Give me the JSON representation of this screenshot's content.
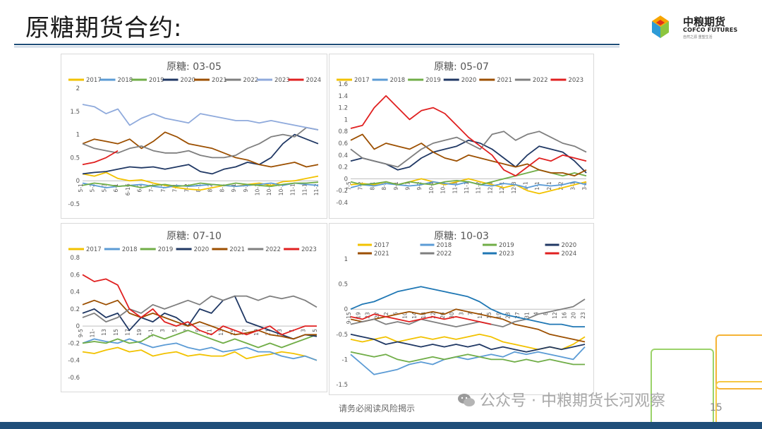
{
  "page": {
    "title": "原糖期货合约:",
    "disclaimer": "请务必阅读风险揭示",
    "page_number": "15",
    "watermark": "公众号 · 中粮期货长河观察"
  },
  "logo": {
    "cn": "中粮期货",
    "en": "COFCO FUTURES",
    "sub": "自然之源  重塑生活"
  },
  "colors": {
    "title_line": "#1f4e79",
    "bottom_bar": "#1f4e79"
  },
  "chart_data": [
    {
      "type": "line",
      "title": "原糖:  03-05",
      "ylim": [
        -0.5,
        2
      ],
      "yticks": [
        "2",
        "1.5",
        "1",
        "0.5",
        "0",
        "-0.5"
      ],
      "xticks": [
        "5-1",
        "5-2",
        "5-3",
        "6-1",
        "6-16",
        "6-2",
        "7-1",
        "7-1",
        "7-1",
        "7-2",
        "8-1",
        "8-2",
        "8-1",
        "9-1",
        "9-2",
        "10-1",
        "10-1",
        "10-3",
        "11-1",
        "11-1",
        "11-2"
      ],
      "legend": [
        {
          "name": "2017",
          "color": "#f2c200"
        },
        {
          "name": "2018",
          "color": "#5b9bd5"
        },
        {
          "name": "2019",
          "color": "#70ad47"
        },
        {
          "name": "2020",
          "color": "#203864"
        },
        {
          "name": "2021",
          "color": "#9c4f00"
        },
        {
          "name": "2022",
          "color": "#7f7f7f"
        },
        {
          "name": "2023",
          "color": "#8faadc"
        },
        {
          "name": "2024",
          "color": "#e02020"
        }
      ],
      "series": [
        {
          "name": "2017",
          "values": [
            0.15,
            0.1,
            0.18,
            0.05,
            0.0,
            0.02,
            -0.05,
            -0.1,
            -0.15,
            -0.18,
            -0.2,
            -0.15,
            -0.1,
            -0.12,
            -0.08,
            -0.05,
            -0.1,
            -0.02,
            0.0,
            0.05,
            0.1
          ]
        },
        {
          "name": "2018",
          "values": [
            -0.05,
            -0.1,
            -0.15,
            -0.12,
            -0.1,
            -0.08,
            -0.12,
            -0.15,
            -0.1,
            -0.12,
            -0.1,
            -0.08,
            -0.1,
            -0.12,
            -0.1,
            -0.08,
            -0.05,
            -0.1,
            -0.05,
            -0.08,
            -0.1
          ]
        },
        {
          "name": "2019",
          "values": [
            -0.1,
            -0.05,
            -0.08,
            -0.12,
            -0.1,
            -0.15,
            -0.1,
            -0.08,
            -0.12,
            -0.1,
            -0.05,
            -0.08,
            -0.1,
            -0.05,
            -0.08,
            -0.1,
            -0.12,
            -0.08,
            -0.05,
            -0.05,
            -0.03
          ]
        },
        {
          "name": "2020",
          "values": [
            0.15,
            0.18,
            0.2,
            0.25,
            0.3,
            0.28,
            0.3,
            0.25,
            0.3,
            0.35,
            0.2,
            0.15,
            0.25,
            0.3,
            0.4,
            0.35,
            0.5,
            0.8,
            1.0,
            0.9,
            0.8
          ]
        },
        {
          "name": "2021",
          "values": [
            0.8,
            0.9,
            0.85,
            0.8,
            0.9,
            0.7,
            0.85,
            1.05,
            0.95,
            0.8,
            0.75,
            0.7,
            0.6,
            0.5,
            0.45,
            0.35,
            0.3,
            0.35,
            0.4,
            0.3,
            0.35
          ]
        },
        {
          "name": "2022",
          "values": [
            0.8,
            0.7,
            0.65,
            0.6,
            0.7,
            0.75,
            0.65,
            0.6,
            0.6,
            0.65,
            0.55,
            0.5,
            0.5,
            0.55,
            0.7,
            0.8,
            0.95,
            1.0,
            0.95,
            1.15,
            1.1
          ]
        },
        {
          "name": "2023",
          "values": [
            1.65,
            1.6,
            1.45,
            1.55,
            1.2,
            1.35,
            1.45,
            1.35,
            1.3,
            1.25,
            1.45,
            1.4,
            1.35,
            1.3,
            1.3,
            1.25,
            1.3,
            1.25,
            1.2,
            1.15,
            1.1
          ]
        },
        {
          "name": "2024",
          "values": [
            0.35,
            0.4,
            0.5,
            0.65,
            null,
            null,
            null,
            null,
            null,
            null,
            null,
            null,
            null,
            null,
            null,
            null,
            null,
            null,
            null,
            null,
            null
          ]
        }
      ]
    },
    {
      "type": "line",
      "title": "原糖:  05-07",
      "ylim": [
        -0.4,
        1.6
      ],
      "yticks": [
        "1.6",
        "1.4",
        "1.2",
        "1",
        "0.8",
        "0.6",
        "0.4",
        "0.2",
        "0",
        "-0.2",
        "-0.4"
      ],
      "xticks": [
        "7-5",
        "7-2",
        "8-1",
        "8-2",
        "9-1",
        "9-1",
        "9-2",
        "10-1",
        "10-1",
        "11-1",
        "11-1",
        "11-2",
        "12-1",
        "12-1",
        "12-3",
        "1-1",
        "1-1",
        "2-1",
        "2-2",
        "3-1",
        "3-2"
      ],
      "legend": [
        {
          "name": "2017",
          "color": "#f2c200"
        },
        {
          "name": "2018",
          "color": "#5b9bd5"
        },
        {
          "name": "2019",
          "color": "#70ad47"
        },
        {
          "name": "2020",
          "color": "#203864"
        },
        {
          "name": "2021",
          "color": "#9c4f00"
        },
        {
          "name": "2022",
          "color": "#7f7f7f"
        },
        {
          "name": "2023",
          "color": "#e02020"
        }
      ],
      "series": [
        {
          "name": "2017",
          "values": [
            -0.1,
            -0.08,
            -0.1,
            -0.05,
            -0.1,
            -0.05,
            0.0,
            -0.05,
            -0.1,
            -0.05,
            0.0,
            -0.05,
            -0.1,
            -0.15,
            -0.1,
            -0.2,
            -0.25,
            -0.2,
            -0.15,
            -0.1,
            -0.05
          ]
        },
        {
          "name": "2018",
          "values": [
            -0.15,
            -0.1,
            -0.12,
            -0.08,
            -0.1,
            -0.12,
            -0.1,
            -0.05,
            -0.08,
            -0.1,
            -0.05,
            -0.1,
            -0.12,
            -0.08,
            -0.1,
            -0.15,
            -0.1,
            -0.12,
            -0.1,
            -0.05,
            -0.1
          ]
        },
        {
          "name": "2019",
          "values": [
            -0.05,
            -0.1,
            -0.08,
            -0.05,
            -0.1,
            -0.05,
            -0.08,
            -0.1,
            -0.05,
            -0.03,
            -0.05,
            -0.1,
            -0.05,
            0.0,
            0.05,
            0.1,
            0.15,
            0.1,
            0.05,
            0.1,
            0.05
          ]
        },
        {
          "name": "2020",
          "values": [
            0.3,
            0.35,
            0.3,
            0.25,
            0.15,
            0.2,
            0.35,
            0.45,
            0.5,
            0.55,
            0.65,
            0.6,
            0.5,
            0.35,
            0.2,
            0.4,
            0.55,
            0.5,
            0.45,
            0.3,
            0.1
          ]
        },
        {
          "name": "2021",
          "values": [
            0.65,
            0.75,
            0.5,
            0.6,
            0.55,
            0.5,
            0.6,
            0.45,
            0.35,
            0.3,
            0.4,
            0.35,
            0.3,
            0.25,
            0.2,
            0.25,
            0.15,
            0.1,
            0.1,
            0.05,
            0.15
          ]
        },
        {
          "name": "2022",
          "values": [
            0.5,
            0.35,
            0.3,
            0.25,
            0.2,
            0.35,
            0.5,
            0.6,
            0.65,
            0.7,
            0.6,
            0.5,
            0.75,
            0.8,
            0.65,
            0.75,
            0.8,
            0.7,
            0.6,
            0.55,
            0.45
          ]
        },
        {
          "name": "2023",
          "values": [
            0.85,
            0.9,
            1.2,
            1.4,
            1.2,
            1.0,
            1.15,
            1.2,
            1.1,
            0.9,
            0.7,
            0.55,
            0.4,
            0.15,
            0.05,
            0.2,
            0.35,
            0.3,
            0.4,
            0.35,
            0.3
          ]
        }
      ]
    },
    {
      "type": "line",
      "title": "原糖:  07-10",
      "ylim": [
        -0.6,
        0.8
      ],
      "yticks": [
        "0.8",
        "0.6",
        "0.4",
        "0.2",
        "0",
        "-0.2",
        "-0.4",
        "-0.6"
      ],
      "xticks": [
        "9-5",
        "11-",
        "13",
        "15",
        "17",
        "19",
        "1-1",
        "3",
        "5",
        "7",
        "9",
        "11",
        "13",
        "15",
        "17",
        "19",
        "21",
        "23",
        "1",
        "3",
        "5"
      ],
      "legend": [
        {
          "name": "2017",
          "color": "#f2c200"
        },
        {
          "name": "2018",
          "color": "#5b9bd5"
        },
        {
          "name": "2019",
          "color": "#70ad47"
        },
        {
          "name": "2020",
          "color": "#203864"
        },
        {
          "name": "2021",
          "color": "#9c4f00"
        },
        {
          "name": "2022",
          "color": "#7f7f7f"
        },
        {
          "name": "2023",
          "color": "#e02020"
        }
      ],
      "series": [
        {
          "name": "2017",
          "values": [
            -0.3,
            -0.32,
            -0.28,
            -0.25,
            -0.3,
            -0.28,
            -0.35,
            -0.32,
            -0.3,
            -0.35,
            -0.33,
            -0.35,
            -0.35,
            -0.3,
            -0.38,
            -0.35,
            -0.33,
            -0.3,
            -0.32,
            -0.35,
            -0.4
          ]
        },
        {
          "name": "2018",
          "values": [
            -0.2,
            -0.15,
            -0.18,
            -0.2,
            -0.15,
            -0.2,
            -0.25,
            -0.22,
            -0.2,
            -0.25,
            -0.28,
            -0.25,
            -0.3,
            -0.28,
            -0.25,
            -0.3,
            -0.3,
            -0.35,
            -0.38,
            -0.35,
            -0.4
          ]
        },
        {
          "name": "2019",
          "values": [
            -0.2,
            -0.18,
            -0.2,
            -0.15,
            -0.2,
            -0.18,
            -0.1,
            -0.15,
            -0.1,
            -0.05,
            -0.1,
            -0.15,
            -0.2,
            -0.15,
            -0.2,
            -0.25,
            -0.2,
            -0.25,
            -0.2,
            -0.15,
            -0.1
          ]
        },
        {
          "name": "2020",
          "values": [
            0.15,
            0.2,
            0.1,
            0.15,
            -0.05,
            0.1,
            0.05,
            0.15,
            0.1,
            0.0,
            0.2,
            0.15,
            0.3,
            0.35,
            0.05,
            0.0,
            -0.05,
            -0.1,
            -0.15,
            -0.1,
            -0.12
          ]
        },
        {
          "name": "2021",
          "values": [
            0.25,
            0.3,
            0.25,
            0.3,
            0.15,
            0.1,
            0.15,
            0.1,
            0.05,
            0.0,
            0.05,
            0.0,
            -0.05,
            -0.1,
            -0.08,
            -0.05,
            -0.1,
            -0.12,
            -0.15,
            -0.1,
            -0.1
          ]
        },
        {
          "name": "2022",
          "values": [
            0.1,
            0.15,
            0.05,
            0.1,
            0.2,
            0.15,
            0.25,
            0.2,
            0.25,
            0.3,
            0.25,
            0.35,
            0.3,
            0.35,
            0.35,
            0.3,
            0.35,
            0.32,
            0.35,
            0.3,
            0.22
          ]
        },
        {
          "name": "2023",
          "values": [
            0.6,
            0.52,
            0.55,
            0.48,
            0.2,
            0.1,
            0.2,
            0.05,
            0.0,
            0.05,
            -0.05,
            -0.1,
            0.0,
            -0.05,
            -0.1,
            -0.05,
            0.0,
            -0.1,
            -0.05,
            0.0,
            0.0
          ]
        }
      ]
    },
    {
      "type": "line",
      "title": "原糖:  10-03",
      "ylim": [
        -1.5,
        1
      ],
      "yticks": [
        "1",
        "0.5",
        "0",
        "-0.5",
        "-1",
        "-1.5"
      ],
      "xticks": [
        "9-15",
        "19",
        "23",
        "27",
        "2",
        "6",
        "10",
        "14",
        "18",
        "22",
        "26",
        "30",
        "3",
        "7",
        "11",
        "15",
        "19",
        "23",
        "27",
        "31",
        "4",
        "8",
        "12",
        "16",
        "20",
        "23"
      ],
      "legend": [
        {
          "name": "2017",
          "color": "#f2c200"
        },
        {
          "name": "2018",
          "color": "#5b9bd5"
        },
        {
          "name": "2019",
          "color": "#70ad47"
        },
        {
          "name": "2020",
          "color": "#203864"
        },
        {
          "name": "2021",
          "color": "#9c4f00"
        },
        {
          "name": "2022",
          "color": "#7f7f7f"
        },
        {
          "name": "2023",
          "color": "#1f77b4"
        },
        {
          "name": "2024",
          "color": "#e02020"
        }
      ],
      "series": [
        {
          "name": "2017",
          "values": [
            -0.6,
            -0.65,
            -0.6,
            -0.55,
            -0.65,
            -0.6,
            -0.55,
            -0.6,
            -0.55,
            -0.6,
            -0.55,
            -0.5,
            -0.55,
            -0.65,
            -0.7,
            -0.75,
            -0.8,
            -0.75,
            -0.8,
            -0.7,
            -0.55
          ]
        },
        {
          "name": "2018",
          "values": [
            -0.9,
            -1.1,
            -1.3,
            -1.25,
            -1.2,
            -1.1,
            -1.05,
            -1.1,
            -1.0,
            -0.95,
            -1.0,
            -0.95,
            -0.9,
            -0.95,
            -0.85,
            -0.9,
            -0.85,
            -0.9,
            -0.95,
            -1.0,
            -0.75
          ]
        },
        {
          "name": "2019",
          "values": [
            -0.85,
            -0.9,
            -0.95,
            -0.9,
            -1.0,
            -1.05,
            -1.0,
            -0.95,
            -1.0,
            -0.95,
            -0.9,
            -0.95,
            -1.0,
            -1.0,
            -1.05,
            -1.0,
            -1.05,
            -1.0,
            -1.05,
            -1.1,
            -1.1
          ]
        },
        {
          "name": "2020",
          "values": [
            -0.5,
            -0.55,
            -0.6,
            -0.7,
            -0.65,
            -0.7,
            -0.75,
            -0.7,
            -0.75,
            -0.7,
            -0.75,
            -0.7,
            -0.8,
            -0.75,
            -0.8,
            -0.85,
            -0.8,
            -0.75,
            -0.8,
            -0.75,
            -0.7
          ]
        },
        {
          "name": "2021",
          "values": [
            -0.2,
            -0.25,
            -0.2,
            -0.15,
            -0.1,
            -0.05,
            -0.1,
            -0.05,
            -0.1,
            0.0,
            -0.05,
            -0.1,
            -0.15,
            -0.2,
            -0.3,
            -0.35,
            -0.4,
            -0.5,
            -0.55,
            -0.6,
            -0.65
          ]
        },
        {
          "name": "2022",
          "values": [
            -0.3,
            -0.25,
            -0.2,
            -0.3,
            -0.25,
            -0.3,
            -0.2,
            -0.25,
            -0.3,
            -0.35,
            -0.3,
            -0.25,
            -0.3,
            -0.35,
            -0.25,
            -0.2,
            -0.1,
            -0.05,
            0.0,
            0.05,
            0.2
          ]
        },
        {
          "name": "2023",
          "values": [
            0.0,
            0.1,
            0.15,
            0.25,
            0.35,
            0.4,
            0.45,
            0.4,
            0.35,
            0.3,
            0.25,
            0.15,
            0.0,
            -0.1,
            -0.15,
            -0.2,
            -0.25,
            -0.3,
            -0.3,
            -0.35,
            -0.35
          ]
        },
        {
          "name": "2024",
          "values": [
            -0.15,
            -0.2,
            -0.1,
            -0.15,
            -0.2,
            -0.25,
            -0.2,
            -0.15,
            -0.2,
            -0.15,
            -0.2,
            -0.25,
            -0.3,
            null,
            null,
            null,
            null,
            null,
            null,
            null,
            null
          ]
        }
      ]
    }
  ]
}
